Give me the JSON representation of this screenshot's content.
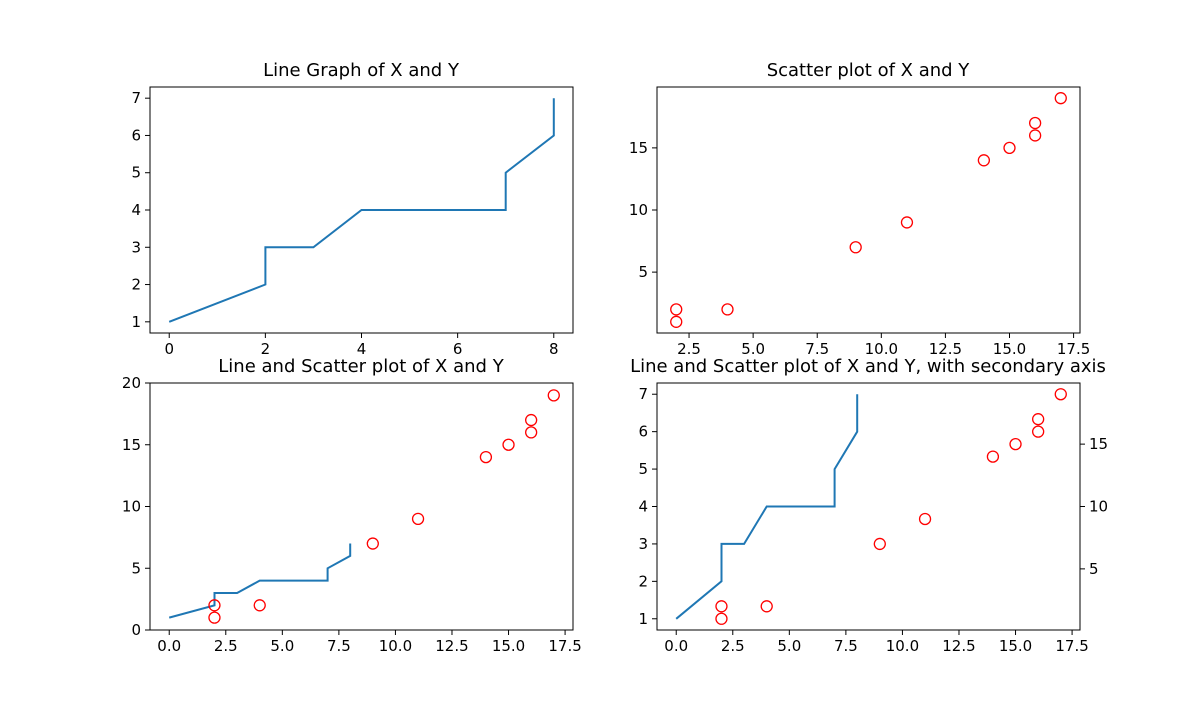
{
  "colors": {
    "line": "#1f77b4",
    "marker": "#ff0000",
    "axis": "#000000",
    "background": "#ffffff"
  },
  "chart_data": [
    {
      "type": "line",
      "title": "Line Graph of X and Y",
      "xlabel": "",
      "ylabel": "",
      "xlim": [
        -0.4,
        8.4
      ],
      "ylim": [
        0.7,
        7.3
      ],
      "xticks": [
        0,
        2,
        4,
        6,
        8
      ],
      "xticklabels": [
        "0",
        "2",
        "4",
        "6",
        "8"
      ],
      "yticks": [
        1,
        2,
        3,
        4,
        5,
        6,
        7
      ],
      "yticklabels": [
        "1",
        "2",
        "3",
        "4",
        "5",
        "6",
        "7"
      ],
      "grid": false,
      "legend": false,
      "line": {
        "x": [
          0,
          2,
          2,
          3,
          4,
          7,
          7,
          8,
          8
        ],
        "y": [
          1,
          2,
          3,
          3,
          4,
          4,
          5,
          6,
          7
        ]
      }
    },
    {
      "type": "scatter",
      "title": "Scatter plot of X and Y",
      "xlabel": "",
      "ylabel": "",
      "xlim": [
        1.25,
        17.75
      ],
      "ylim": [
        0.1,
        19.9
      ],
      "xticks": [
        2.5,
        5,
        7.5,
        10,
        12.5,
        15,
        17.5
      ],
      "xticklabels": [
        "2.5",
        "5.0",
        "7.5",
        "10.0",
        "12.5",
        "15.0",
        "17.5"
      ],
      "yticks": [
        5,
        10,
        15
      ],
      "yticklabels": [
        "5",
        "10",
        "15"
      ],
      "grid": false,
      "legend": false,
      "scatter": {
        "x": [
          2,
          2,
          4,
          9,
          11,
          14,
          15,
          16,
          16,
          17
        ],
        "y": [
          1,
          2,
          2,
          7,
          9,
          14,
          15,
          16,
          17,
          19
        ]
      }
    },
    {
      "type": "line",
      "title": "Line and Scatter plot of X and Y",
      "xlabel": "",
      "ylabel": "",
      "xlim": [
        -0.85,
        17.85
      ],
      "ylim": [
        0,
        20
      ],
      "xticks": [
        0,
        2.5,
        5,
        7.5,
        10,
        12.5,
        15,
        17.5
      ],
      "xticklabels": [
        "0.0",
        "2.5",
        "5.0",
        "7.5",
        "10.0",
        "12.5",
        "15.0",
        "17.5"
      ],
      "yticks": [
        0,
        5,
        10,
        15,
        20
      ],
      "yticklabels": [
        "0",
        "5",
        "10",
        "15",
        "20"
      ],
      "grid": false,
      "legend": false,
      "line": {
        "x": [
          0,
          2,
          2,
          3,
          4,
          7,
          7,
          8,
          8
        ],
        "y": [
          1,
          2,
          3,
          3,
          4,
          4,
          5,
          6,
          7
        ]
      },
      "scatter": {
        "x": [
          2,
          2,
          4,
          9,
          11,
          14,
          15,
          16,
          16,
          17
        ],
        "y": [
          1,
          2,
          2,
          7,
          9,
          14,
          15,
          16,
          17,
          19
        ]
      }
    },
    {
      "type": "line",
      "title": "Line and Scatter plot of X and Y, with secondary axis",
      "xlabel": "",
      "ylabel": "",
      "ylabel2": "",
      "xlim": [
        -0.85,
        17.85
      ],
      "ylim": [
        0.7,
        7.3
      ],
      "ylim2": [
        0.1,
        19.9
      ],
      "xticks": [
        0,
        2.5,
        5,
        7.5,
        10,
        12.5,
        15,
        17.5
      ],
      "xticklabels": [
        "0.0",
        "2.5",
        "5.0",
        "7.5",
        "10.0",
        "12.5",
        "15.0",
        "17.5"
      ],
      "yticks": [
        1,
        2,
        3,
        4,
        5,
        6,
        7
      ],
      "yticklabels": [
        "1",
        "2",
        "3",
        "4",
        "5",
        "6",
        "7"
      ],
      "yticks2": [
        5,
        10,
        15
      ],
      "yticklabels2": [
        "5",
        "10",
        "15"
      ],
      "grid": false,
      "legend": false,
      "line": {
        "x": [
          0,
          2,
          2,
          3,
          4,
          7,
          7,
          8,
          8
        ],
        "y": [
          1,
          2,
          3,
          3,
          4,
          4,
          5,
          6,
          7
        ]
      },
      "scatter": {
        "x": [
          2,
          2,
          4,
          9,
          11,
          14,
          15,
          16,
          16,
          17
        ],
        "y": [
          1,
          2,
          2,
          7,
          9,
          14,
          15,
          16,
          17,
          19
        ],
        "axis": "secondary"
      }
    }
  ]
}
